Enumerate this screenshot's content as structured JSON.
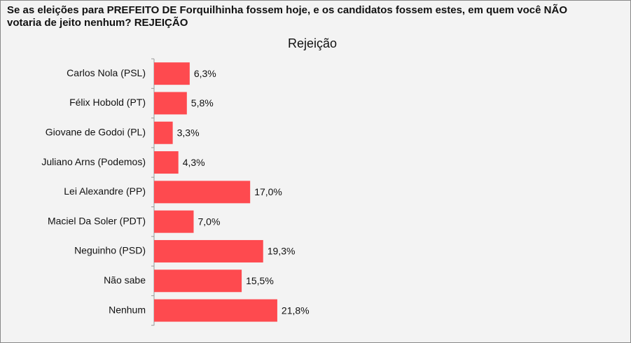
{
  "chart_data": {
    "type": "bar",
    "orientation": "horizontal",
    "title": "Se as eleições para PREFEITO DE Forquilhinha fossem hoje, e os candidatos fossem estes, em quem você NÃO votaria de jeito nenhum? REJEIÇÃO",
    "subtitle": "Rejeição",
    "categories": [
      "Carlos Nola (PSL)",
      "Félix Hobold (PT)",
      "Giovane de Godoi (PL)",
      "Juliano Arns (Podemos)",
      "Lei Alexandre (PP)",
      "Maciel Da Soler (PDT)",
      "Neguinho (PSD)",
      "Não sabe",
      "Nenhum"
    ],
    "values": [
      6.3,
      5.8,
      3.3,
      4.3,
      17.0,
      7.0,
      19.3,
      15.5,
      21.8
    ],
    "value_labels": [
      "6,3%",
      "5,8%",
      "3,3%",
      "4,3%",
      "17,0%",
      "7,0%",
      "19,3%",
      "15,5%",
      "21,8%"
    ],
    "color": "#fe4a4f"
  }
}
